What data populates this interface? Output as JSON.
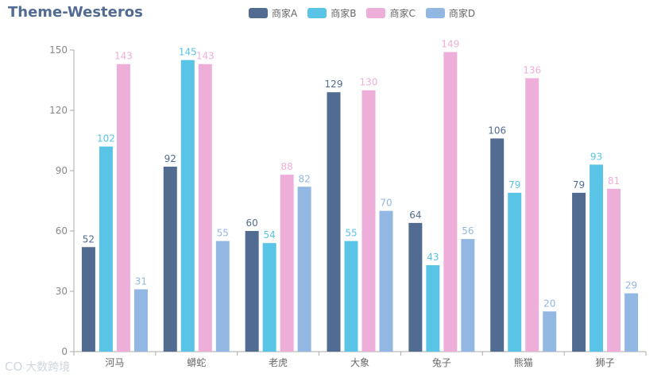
{
  "chart_data": {
    "type": "bar",
    "title": "Theme-Westeros",
    "categories": [
      "河马",
      "蟒蛇",
      "老虎",
      "大象",
      "兔子",
      "熊猫",
      "狮子"
    ],
    "series": [
      {
        "name": "商家A",
        "color": "#516b91",
        "values": [
          52,
          92,
          60,
          129,
          64,
          106,
          79
        ]
      },
      {
        "name": "商家B",
        "color": "#59c4e6",
        "values": [
          102,
          145,
          54,
          55,
          43,
          79,
          93
        ]
      },
      {
        "name": "商家C",
        "color": "#edafda",
        "values": [
          143,
          143,
          88,
          130,
          149,
          136,
          81
        ]
      },
      {
        "name": "商家D",
        "color": "#93b7e3",
        "values": [
          31,
          55,
          82,
          70,
          56,
          20,
          29
        ]
      }
    ],
    "ylim": [
      0,
      150
    ],
    "yticks": [
      0,
      30,
      60,
      90,
      120,
      150
    ],
    "legend_position": "top-center",
    "data_labels": true
  },
  "watermark": {
    "icon": "logo-icon",
    "text": "大数跨境",
    "logo_text": "CO"
  }
}
